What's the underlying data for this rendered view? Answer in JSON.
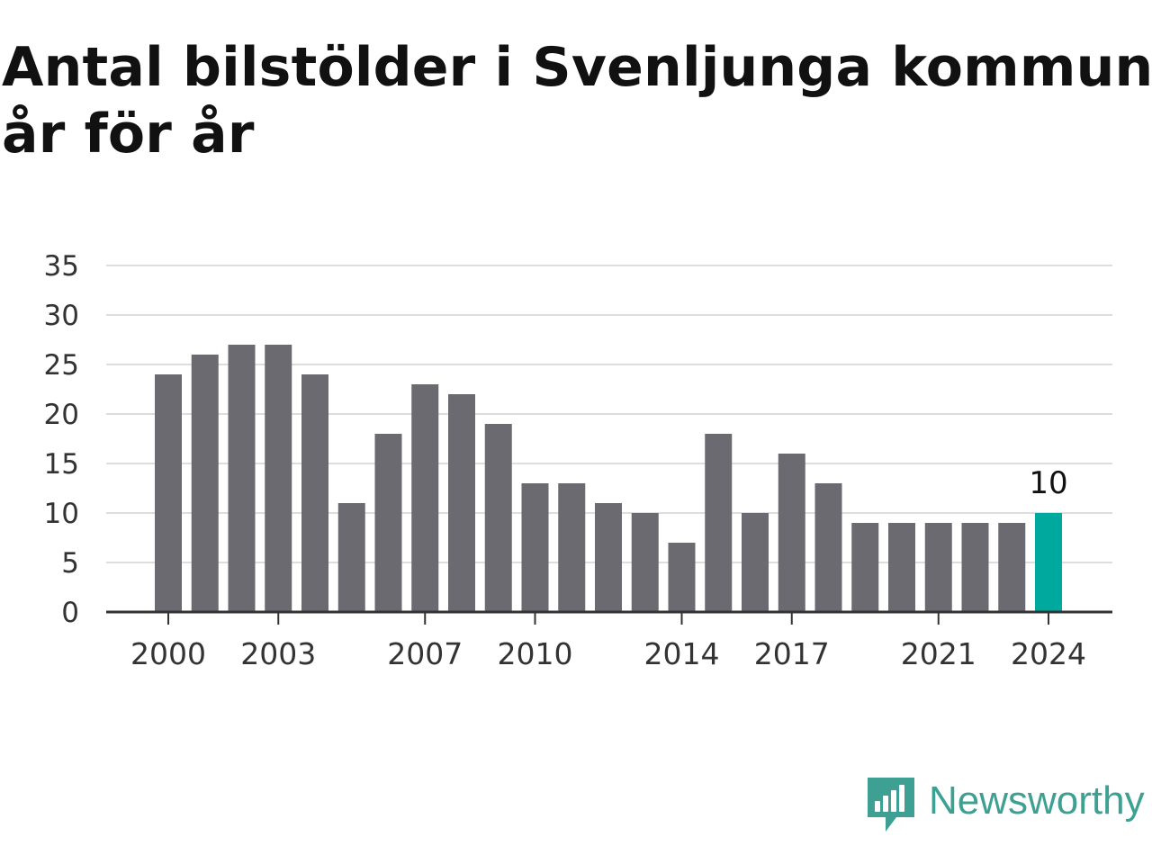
{
  "title_line1": "Antal bilstölder i Svenljunga kommun",
  "title_line2": "år för år",
  "brand": {
    "name": "Newsworthy",
    "icon": "newsworthy-logo-icon",
    "color": "#3e9f93"
  },
  "colors": {
    "bar": "#6b6a70",
    "highlight": "#00a99d",
    "grid": "#dddddd",
    "axis": "#333333",
    "text": "#333333"
  },
  "chart_data": {
    "type": "bar",
    "title": "Antal bilstölder i Svenljunga kommun år för år",
    "xlabel": "",
    "ylabel": "",
    "categories": [
      "2000",
      "2001",
      "2002",
      "2003",
      "2004",
      "2005",
      "2006",
      "2007",
      "2008",
      "2009",
      "2010",
      "2011",
      "2012",
      "2013",
      "2014",
      "2015",
      "2016",
      "2017",
      "2018",
      "2019",
      "2020",
      "2021",
      "2022",
      "2023",
      "2024"
    ],
    "values": [
      24,
      26,
      27,
      27,
      24,
      11,
      18,
      23,
      22,
      19,
      13,
      13,
      11,
      10,
      7,
      18,
      10,
      16,
      13,
      9,
      9,
      9,
      9,
      9,
      10
    ],
    "x_tick_labels": [
      "2000",
      "2003",
      "2007",
      "2010",
      "2014",
      "2017",
      "2021",
      "2024"
    ],
    "y_ticks": [
      0,
      5,
      10,
      15,
      20,
      25,
      30,
      35
    ],
    "ylim": [
      0,
      35
    ],
    "grid": true,
    "legend": "none",
    "highlight": {
      "category": "2024",
      "label": "10"
    }
  }
}
